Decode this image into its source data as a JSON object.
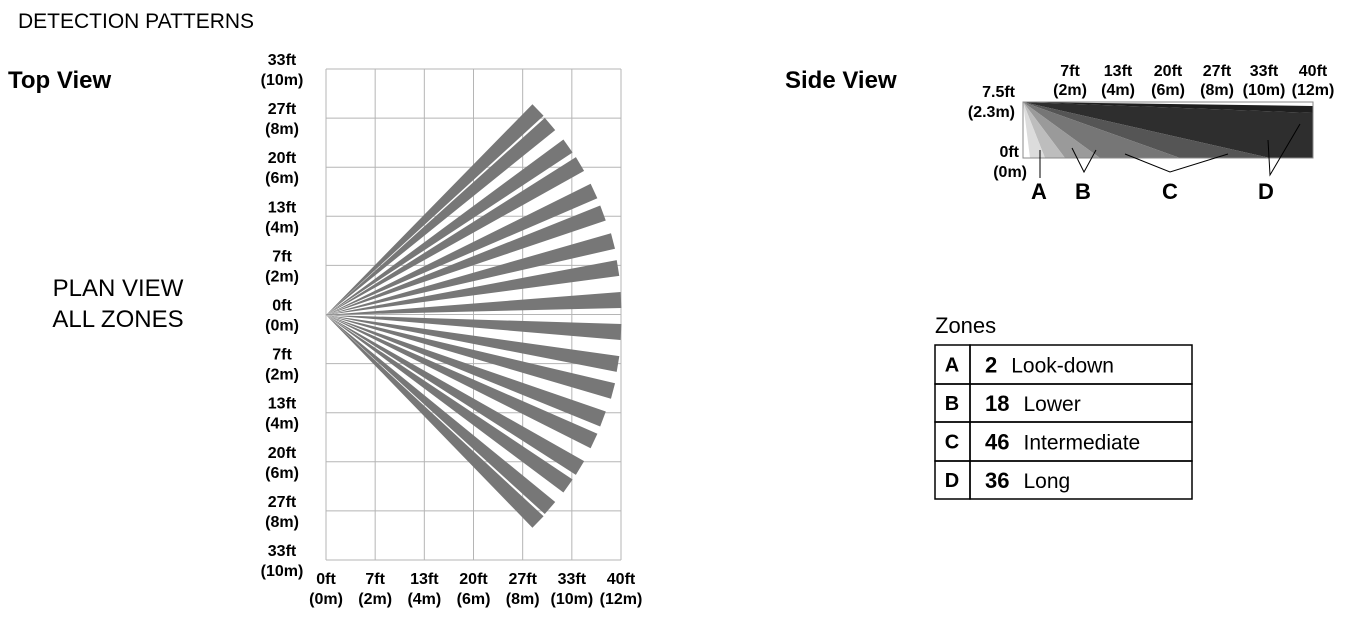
{
  "title": "DETECTION PATTERNS",
  "top_view": {
    "heading": "Top View",
    "caption": [
      "PLAN  VIEW",
      "ALL  ZONES"
    ],
    "y_labels": [
      [
        "33ft",
        "(10m)"
      ],
      [
        "27ft",
        "(8m)"
      ],
      [
        "20ft",
        "(6m)"
      ],
      [
        "13ft",
        "(4m)"
      ],
      [
        "7ft",
        "(2m)"
      ],
      [
        "0ft",
        "(0m)"
      ],
      [
        "7ft",
        "(2m)"
      ],
      [
        "13ft",
        "(4m)"
      ],
      [
        "20ft",
        "(6m)"
      ],
      [
        "27ft",
        "(8m)"
      ],
      [
        "33ft",
        "(10m)"
      ]
    ],
    "x_labels": [
      [
        "0ft",
        "(0m)"
      ],
      [
        "7ft",
        "(2m)"
      ],
      [
        "13ft",
        "(4m)"
      ],
      [
        "20ft",
        "(6m)"
      ],
      [
        "27ft",
        "(8m)"
      ],
      [
        "33ft",
        "(10m)"
      ],
      [
        "40ft",
        "(12m)"
      ]
    ]
  },
  "side_view": {
    "heading": "Side View",
    "height_top": [
      "7.5ft",
      "(2.3m)"
    ],
    "height_bottom": [
      "0ft",
      "(0m)"
    ],
    "x_labels": [
      [
        "7ft",
        "(2m)"
      ],
      [
        "13ft",
        "(4m)"
      ],
      [
        "20ft",
        "(6m)"
      ],
      [
        "27ft",
        "(8m)"
      ],
      [
        "33ft",
        "(10m)"
      ],
      [
        "40ft",
        "(12m)"
      ]
    ],
    "zone_markers": [
      "A",
      "B",
      "C",
      "D"
    ]
  },
  "zones": {
    "heading": "Zones",
    "rows": [
      [
        "A",
        "2",
        "Look-down"
      ],
      [
        "B",
        "18",
        "Lower"
      ],
      [
        "C",
        "46",
        "Intermediate"
      ],
      [
        "D",
        "36",
        "Long"
      ]
    ]
  }
}
